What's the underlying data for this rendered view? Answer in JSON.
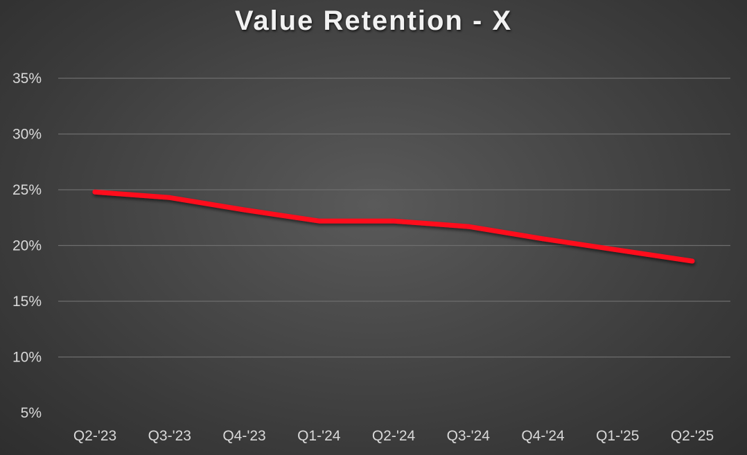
{
  "chart_data": {
    "type": "line",
    "title": "Value Retention - X",
    "xlabel": "",
    "ylabel": "",
    "categories": [
      "Q2-'23",
      "Q3-'23",
      "Q4-'23",
      "Q1-'24",
      "Q2-'24",
      "Q3-'24",
      "Q4-'24",
      "Q1-'25",
      "Q2-'25"
    ],
    "series": [
      {
        "values": [
          0.248,
          0.243,
          0.232,
          0.222,
          0.222,
          0.217,
          0.206,
          0.196,
          0.186
        ]
      }
    ],
    "ylim": [
      0.05,
      0.35
    ],
    "yticks": [
      0.05,
      0.1,
      0.15,
      0.2,
      0.25,
      0.3,
      0.35
    ],
    "ytick_labels": [
      "5%",
      "10%",
      "15%",
      "20%",
      "25%",
      "30%",
      "35%"
    ],
    "grid": true,
    "legend": "none",
    "colors": {
      "line": "#ff0a1e",
      "grid": "#6e6e6e",
      "text": "#d9d9d9",
      "title": "#f2f2f2"
    }
  }
}
